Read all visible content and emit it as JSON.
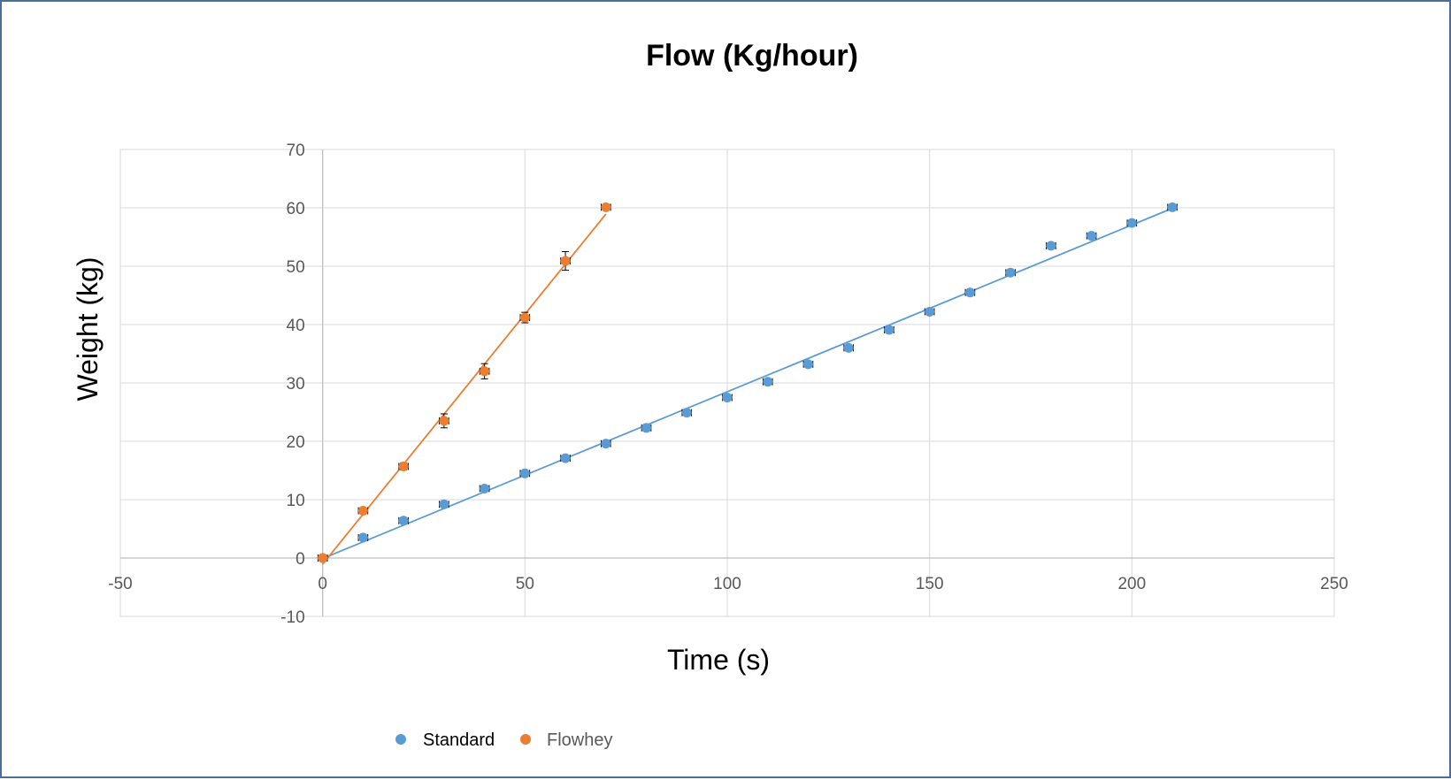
{
  "chart_data": {
    "type": "scatter",
    "title": "Flow (Kg/hour)",
    "xlabel": "Time (s)",
    "ylabel": "Weight (kg)",
    "xlim": [
      -50,
      250
    ],
    "ylim": [
      -10,
      70
    ],
    "x_ticks": [
      -50,
      0,
      50,
      100,
      150,
      200,
      250
    ],
    "y_ticks": [
      -10,
      0,
      10,
      20,
      30,
      40,
      50,
      60,
      70
    ],
    "grid": true,
    "legend_position": "bottom",
    "series": [
      {
        "name": "Standard",
        "color": "#5b9bd5",
        "trendline": "linear",
        "x": [
          0,
          10,
          20,
          30,
          40,
          50,
          60,
          70,
          80,
          90,
          100,
          110,
          120,
          130,
          140,
          150,
          160,
          170,
          180,
          190,
          200,
          210
        ],
        "y": [
          0,
          3.5,
          6.4,
          9.2,
          11.9,
          14.5,
          17.1,
          19.6,
          22.3,
          24.9,
          27.5,
          30.2,
          33.2,
          36.0,
          39.1,
          42.2,
          45.5,
          48.9,
          53.5,
          55.2,
          57.4,
          60.1
        ],
        "x_err": [
          0,
          0.5,
          0.5,
          0.5,
          0.5,
          0.5,
          0.5,
          0.5,
          0.5,
          0.5,
          0.5,
          0.5,
          0.5,
          0.5,
          0.5,
          0.5,
          0.5,
          0.5,
          0.5,
          0.5,
          0.5,
          0.5
        ],
        "y_err": [
          0,
          0,
          0,
          0,
          0,
          0,
          0,
          0,
          0,
          0,
          0,
          0,
          0,
          0,
          0,
          0,
          0,
          0,
          0,
          0,
          0,
          0
        ]
      },
      {
        "name": "Flowhey",
        "color": "#ed7d31",
        "trendline": "linear",
        "x": [
          0,
          10,
          20,
          30,
          40,
          50,
          60,
          70
        ],
        "y": [
          0,
          8.1,
          15.7,
          23.5,
          32.0,
          41.2,
          50.9,
          60.1
        ],
        "x_err": [
          0.5,
          0.5,
          0.5,
          0.5,
          0.5,
          0.5,
          0.5,
          0.5
        ],
        "y_err": [
          0,
          0.3,
          0.6,
          1.2,
          1.3,
          0.9,
          1.6,
          0
        ]
      }
    ]
  }
}
